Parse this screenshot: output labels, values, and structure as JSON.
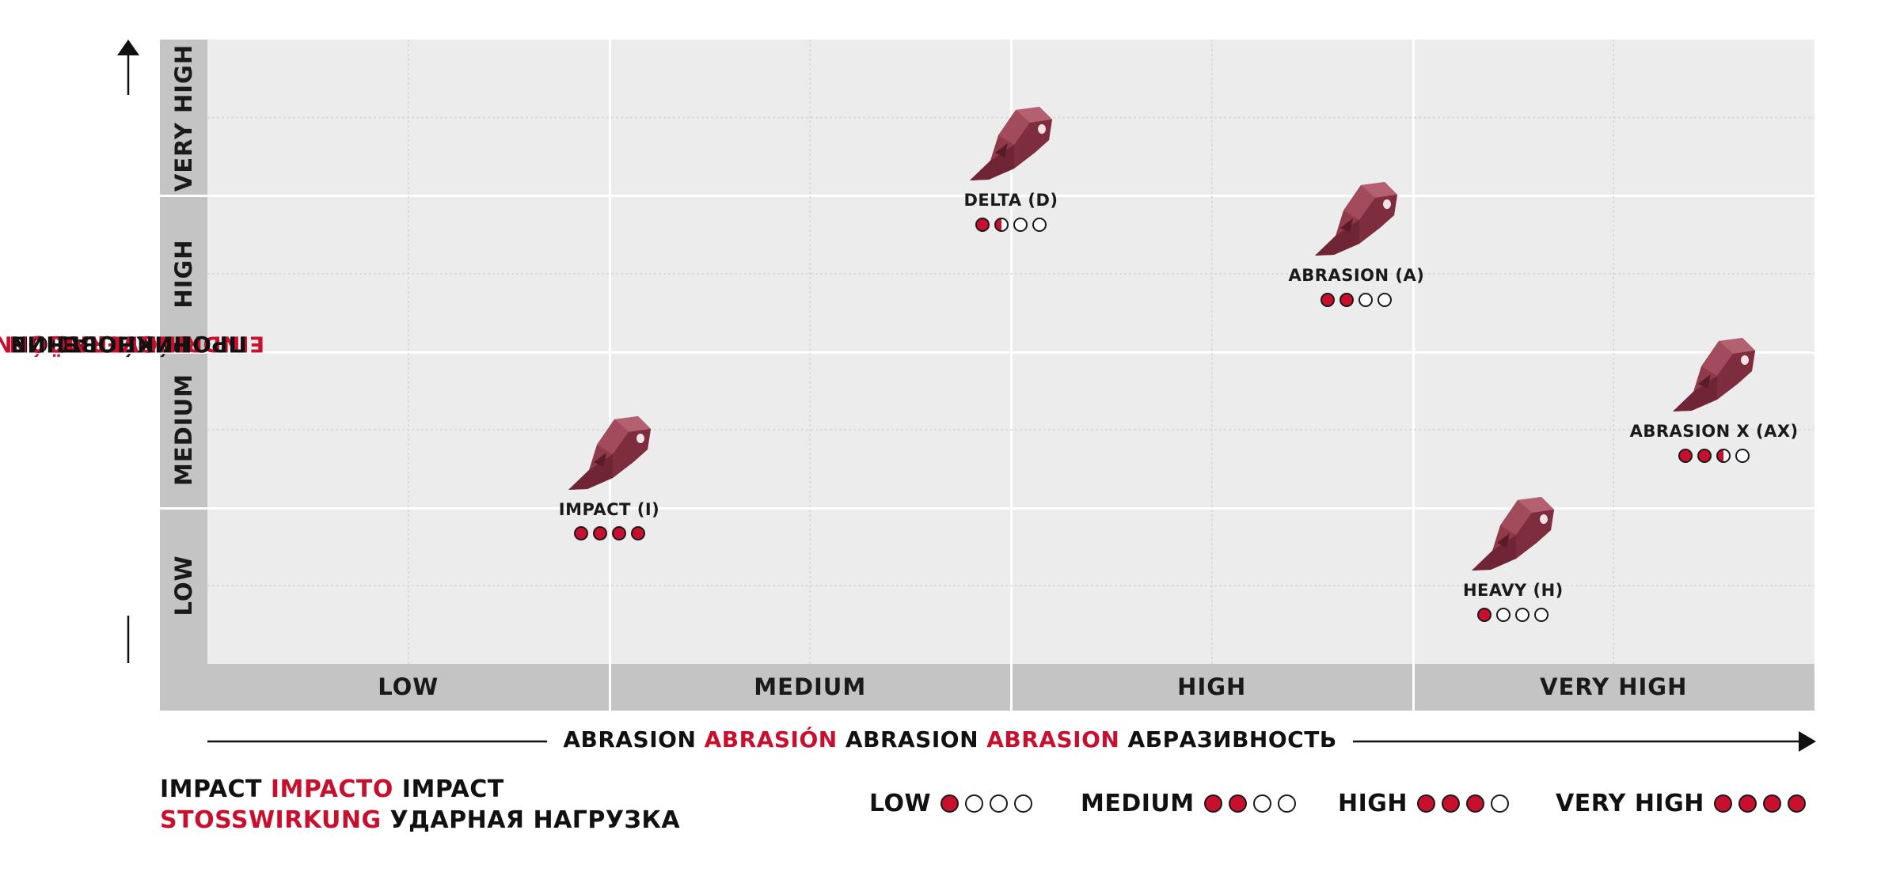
{
  "colors": {
    "accent": "#c8102e",
    "panel": "#ececec",
    "category_band": "#c4c4c4",
    "tooth": "#8e3a4a",
    "empty_dot": "#ffffff"
  },
  "chart_data": {
    "type": "scatter",
    "x_axis": {
      "categories": [
        "LOW",
        "MEDIUM",
        "HIGH",
        "VERY HIGH"
      ],
      "title_parts": [
        {
          "text": "ABRASION",
          "accent": false
        },
        {
          "text": "ABRASIÓN",
          "accent": true
        },
        {
          "text": "ABRASION",
          "accent": false
        },
        {
          "text": "ABRASION",
          "accent": true
        },
        {
          "text": "АБРАЗИВНОСТЬ",
          "accent": false
        }
      ]
    },
    "y_axis": {
      "categories": [
        "LOW",
        "MEDIUM",
        "HIGH",
        "VERY HIGH"
      ],
      "title_lines": [
        [
          {
            "text": "PENETRATION",
            "accent": false
          },
          {
            "text": "PENETRACIÓN",
            "accent": true
          },
          {
            "text": "PÉNÉTRATION",
            "accent": false
          }
        ],
        [
          {
            "text": "EINDRINGVERMÖGEN",
            "accent": true
          },
          {
            "text": "ПРОНИКНОВЕНИЕ",
            "accent": false
          }
        ]
      ]
    },
    "grid": true,
    "points": [
      {
        "label": "IMPACT (I)",
        "abrasion": 1.0,
        "penetration": 1.05,
        "impact": [
          1,
          1,
          1,
          1
        ]
      },
      {
        "label": "DELTA (D)",
        "abrasion": 2.0,
        "penetration": 3.03,
        "impact": [
          1,
          0.5,
          0,
          0
        ]
      },
      {
        "label": "ABRASION (A)",
        "abrasion": 2.86,
        "penetration": 2.55,
        "impact": [
          1,
          1,
          0,
          0
        ]
      },
      {
        "label": "ABRASION X (AX)",
        "abrasion": 3.75,
        "penetration": 1.55,
        "impact": [
          1,
          1,
          0.5,
          0
        ]
      },
      {
        "label": "HEAVY (H)",
        "abrasion": 3.25,
        "penetration": 0.53,
        "impact": [
          1,
          0,
          0,
          0
        ]
      }
    ],
    "legend": {
      "title_lines": [
        [
          {
            "text": "IMPACT",
            "accent": false
          },
          {
            "text": "IMPACTO",
            "accent": true
          },
          {
            "text": "IMPACT",
            "accent": false
          }
        ],
        [
          {
            "text": "STOSSWIRKUNG",
            "accent": true
          },
          {
            "text": "УДАРНАЯ НАГРУЗКА",
            "accent": false
          }
        ]
      ],
      "placement": "bottom",
      "items": [
        {
          "label": "LOW",
          "rating": [
            1,
            0,
            0,
            0
          ]
        },
        {
          "label": "MEDIUM",
          "rating": [
            1,
            1,
            0,
            0
          ]
        },
        {
          "label": "HIGH",
          "rating": [
            1,
            1,
            1,
            0
          ]
        },
        {
          "label": "VERY HIGH",
          "rating": [
            1,
            1,
            1,
            1
          ]
        }
      ]
    }
  }
}
